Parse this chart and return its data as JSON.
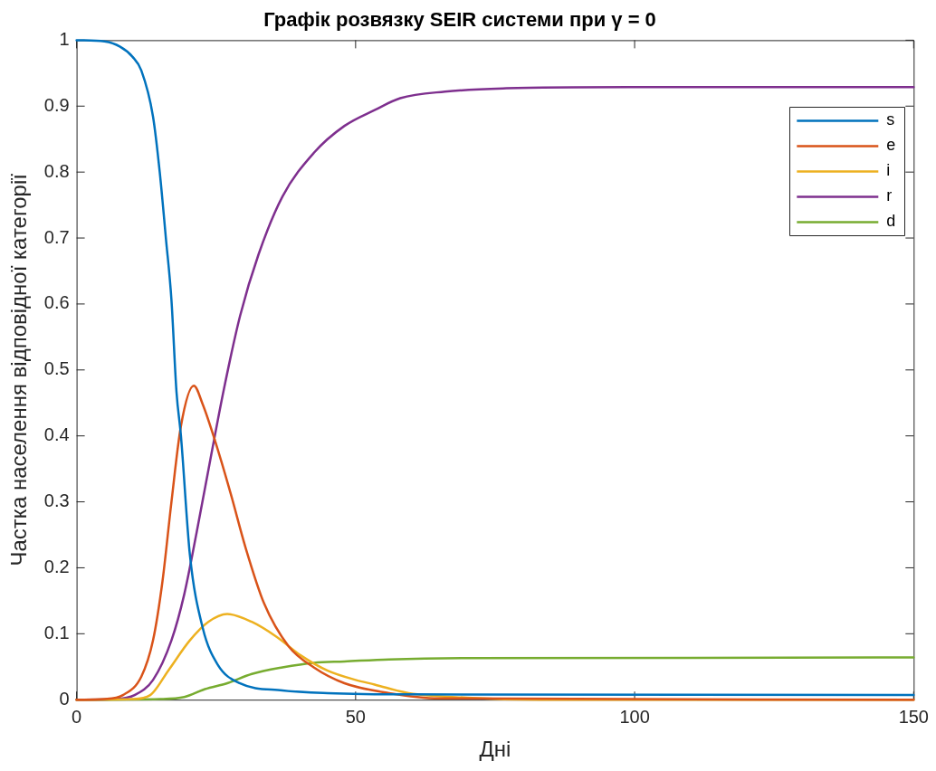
{
  "chart_data": {
    "type": "line",
    "title": "Графік розвязку SEIR системи при γ = 0",
    "xlabel": "Дні",
    "ylabel": "Частка населення відповідної категорії",
    "xlim": [
      0,
      150
    ],
    "ylim": [
      0,
      1
    ],
    "xticks": [
      0,
      50,
      100,
      150
    ],
    "yticks": [
      0,
      0.1,
      0.2,
      0.3,
      0.4,
      0.5,
      0.6,
      0.7,
      0.8,
      0.9,
      1
    ],
    "grid": false,
    "legend": "top right",
    "marker": "none",
    "line_style": "solid",
    "series": [
      {
        "name": "s",
        "color": "#0072bd",
        "x": [
          0,
          5,
          7.8,
          10,
          11.6,
          13.7,
          14.9,
          16,
          17,
          17.9,
          18.7,
          20.3,
          22.6,
          25.3,
          29.2,
          36.9,
          45,
          60,
          150
        ],
        "values": [
          1,
          0.998,
          0.99,
          0.975,
          0.954,
          0.884,
          0.8,
          0.7,
          0.606,
          0.467,
          0.4,
          0.22,
          0.109,
          0.053,
          0.025,
          0.014,
          0.01,
          0.008,
          0.007
        ]
      },
      {
        "name": "e",
        "color": "#d95319",
        "x": [
          0,
          5,
          8.3,
          11.6,
          13.7,
          15.4,
          17,
          18.7,
          21,
          22.6,
          24.8,
          27.6,
          30.3,
          33.6,
          38,
          42.5,
          48,
          56,
          65,
          150
        ],
        "values": [
          0,
          0.001,
          0.007,
          0.035,
          0.09,
          0.18,
          0.3,
          0.415,
          0.476,
          0.448,
          0.393,
          0.313,
          0.23,
          0.146,
          0.081,
          0.049,
          0.025,
          0.01,
          0.002,
          0
        ]
      },
      {
        "name": "i",
        "color": "#edb120",
        "x": [
          0,
          10,
          13.2,
          16.5,
          20.3,
          23.6,
          27,
          31.4,
          35.9,
          40.2,
          45,
          50,
          53.4,
          59.5,
          70,
          83,
          150
        ],
        "values": [
          0,
          0.001,
          0.007,
          0.045,
          0.09,
          0.118,
          0.13,
          0.118,
          0.095,
          0.067,
          0.044,
          0.03,
          0.023,
          0.01,
          0.003,
          0,
          0
        ]
      },
      {
        "name": "r",
        "color": "#7e2f8e",
        "x": [
          0,
          7,
          10.4,
          13.7,
          17,
          19.3,
          21.5,
          24.3,
          26.4,
          29.3,
          32.6,
          36.9,
          42.5,
          48,
          53.4,
          58,
          66,
          77,
          99,
          150
        ],
        "values": [
          0,
          0.001,
          0.007,
          0.03,
          0.09,
          0.16,
          0.253,
          0.379,
          0.471,
          0.582,
          0.675,
          0.763,
          0.829,
          0.87,
          0.894,
          0.912,
          0.922,
          0.927,
          0.929,
          0.929
        ]
      },
      {
        "name": "d",
        "color": "#77ac30",
        "x": [
          0,
          15,
          19.3,
          23,
          27,
          31.4,
          36.9,
          42.5,
          48,
          56,
          70,
          150
        ],
        "values": [
          0,
          0.001,
          0.004,
          0.016,
          0.025,
          0.039,
          0.049,
          0.056,
          0.058,
          0.061,
          0.063,
          0.064
        ]
      }
    ]
  }
}
